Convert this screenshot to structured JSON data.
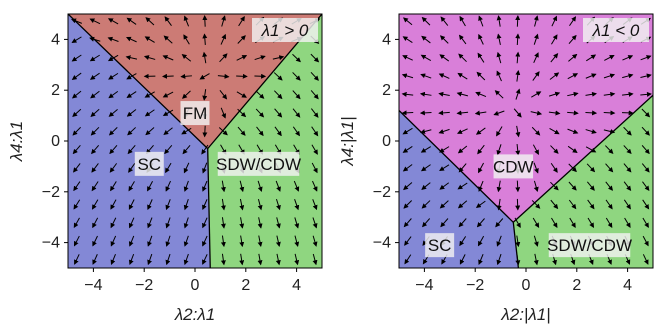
{
  "chart_data": [
    {
      "type": "streamplot",
      "panel_label": "λ1 > 0",
      "xlabel": "λ2:λ1",
      "ylabel": "λ4:λ1",
      "xlim": [
        -5,
        5
      ],
      "ylim": [
        -5,
        5
      ],
      "xticks": [
        "−4",
        "−2",
        "0",
        "2",
        "4"
      ],
      "yticks": [
        "4",
        "2",
        "0",
        "−2",
        "−4"
      ],
      "apex": [
        0.5,
        -0.3
      ],
      "regions": [
        {
          "name": "FM",
          "color": "#cc7b75",
          "label_pos": [
            0,
            1.1
          ]
        },
        {
          "name": "SC",
          "color": "#8388d6",
          "label_pos": [
            -1.8,
            -0.9
          ]
        },
        {
          "name": "SDW/CDW",
          "color": "#8fd680",
          "label_pos": [
            2.5,
            -0.9
          ]
        }
      ],
      "boundaries": [
        {
          "from": [
            0.5,
            -0.3
          ],
          "to": [
            -5,
            5
          ]
        },
        {
          "from": [
            0.5,
            -0.3
          ],
          "to": [
            5,
            5
          ]
        },
        {
          "from": [
            0.5,
            -0.3
          ],
          "to": [
            0.6,
            -5
          ]
        }
      ]
    },
    {
      "type": "streamplot",
      "panel_label": "λ1 < 0",
      "xlabel": "λ2:|λ1|",
      "ylabel": "λ4:|λ1|",
      "xlim": [
        -5,
        5
      ],
      "ylim": [
        -5,
        5
      ],
      "xticks": [
        "−4",
        "−2",
        "0",
        "2",
        "4"
      ],
      "yticks": [
        "4",
        "2",
        "0",
        "−2",
        "−4"
      ],
      "apex": [
        -0.5,
        -3.2
      ],
      "regions": [
        {
          "name": "CDW",
          "color": "#d97fd9",
          "label_pos": [
            -0.5,
            -1.0
          ]
        },
        {
          "name": "SC",
          "color": "#8388d6",
          "label_pos": [
            -3.4,
            -4.1
          ]
        },
        {
          "name": "SDW/CDW",
          "color": "#8fd680",
          "label_pos": [
            2.5,
            -4.1
          ]
        }
      ],
      "boundaries": [
        {
          "from": [
            -0.5,
            -3.2
          ],
          "to": [
            -5,
            1.2
          ]
        },
        {
          "from": [
            -0.5,
            -3.2
          ],
          "to": [
            5,
            1.8
          ]
        },
        {
          "from": [
            -0.5,
            -3.2
          ],
          "to": [
            -0.3,
            -5
          ]
        }
      ]
    }
  ]
}
